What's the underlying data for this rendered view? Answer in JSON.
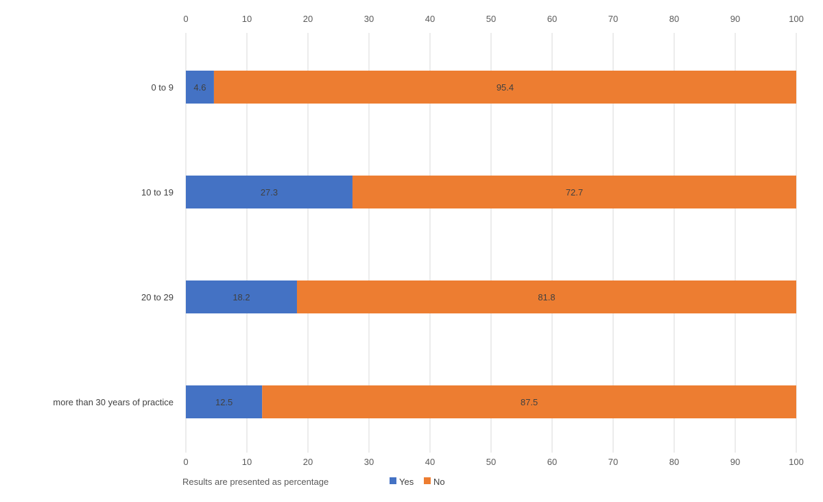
{
  "chart_data": {
    "type": "bar",
    "orientation": "horizontal",
    "stacked": true,
    "categories": [
      "0 to 9",
      "10 to 19",
      "20 to 29",
      "more than 30 years of practice"
    ],
    "series": [
      {
        "name": "Yes",
        "color": "#4472C4",
        "values": [
          4.6,
          27.3,
          18.2,
          12.5
        ]
      },
      {
        "name": "No",
        "color": "#ED7D31",
        "values": [
          95.4,
          72.7,
          81.8,
          87.5
        ]
      }
    ],
    "xlim": [
      0,
      100
    ],
    "xticks": [
      0,
      10,
      20,
      30,
      40,
      50,
      60,
      70,
      80,
      90,
      100
    ],
    "xaxis_position": "top-and-bottom",
    "grid": true,
    "gridline_color": "#d9d9d9",
    "data_labels": true,
    "legend_note": "Results are presented as percentage",
    "legend_position": "bottom-left"
  }
}
